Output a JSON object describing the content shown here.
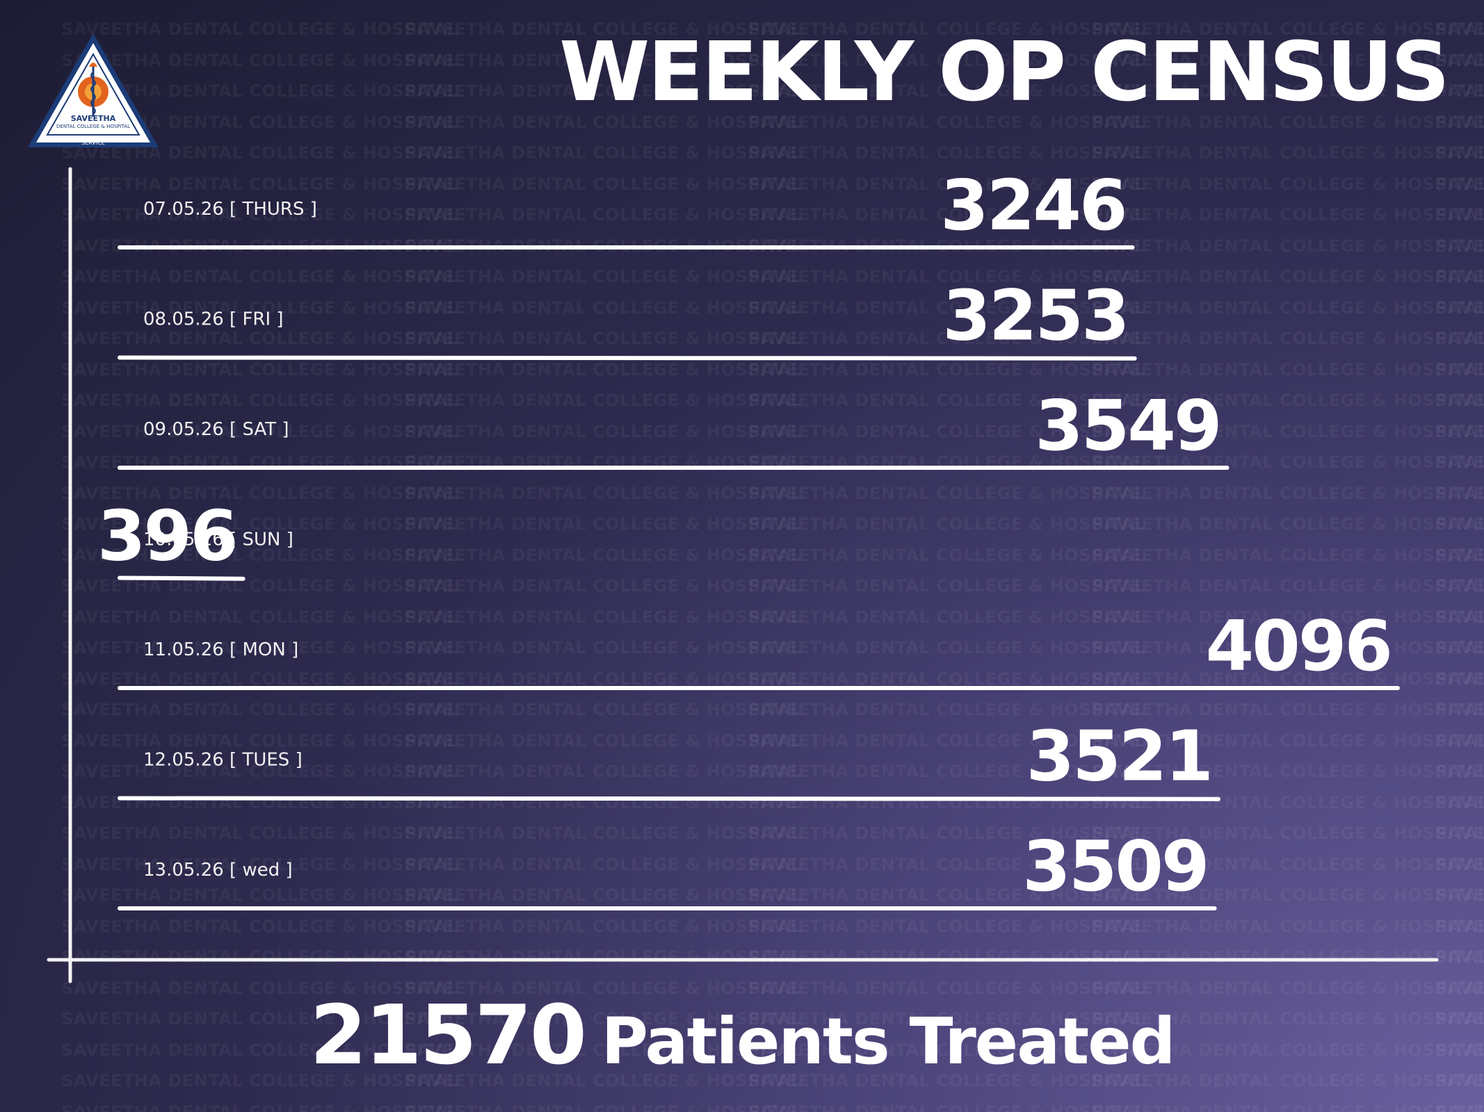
{
  "watermark_text": "SAVEETHA DENTAL COLLEGE & HOSPITAL",
  "logo": {
    "name": "SAVEETHA",
    "subtitle": "DENTAL COLLEGE & HOSPITAL",
    "left_word": "KNOWLEDGE",
    "right_word": "DISCIPLINE",
    "bottom_word": "SERVICE",
    "colors": {
      "border": "#1c3c78",
      "accent": "#e2631e"
    }
  },
  "title": "WEEKLY OP CENSUS",
  "chart_data": {
    "type": "bar",
    "orientation": "horizontal",
    "categories": [
      "07.05.26 [ THURS ]",
      "08.05.26 [ FRI ]",
      "09.05.26 [ SAT ]",
      "10.05.26 [ SUN ]",
      "11.05.26 [ MON ]",
      "12.05.26 [ TUES ]",
      "13.05.26 [ wed ]"
    ],
    "values": [
      3246,
      3253,
      3549,
      396,
      4096,
      3521,
      3509
    ],
    "value_labels": [
      "3246",
      "3253",
      "3549",
      "396",
      "4096",
      "3521",
      "3509"
    ],
    "title": "WEEKLY OP CENSUS",
    "xlabel": "",
    "ylabel": "",
    "grid": false,
    "legend": "none",
    "bar_color": "#ffffff"
  },
  "total": {
    "value": "21570",
    "label": "Patients Treated"
  }
}
